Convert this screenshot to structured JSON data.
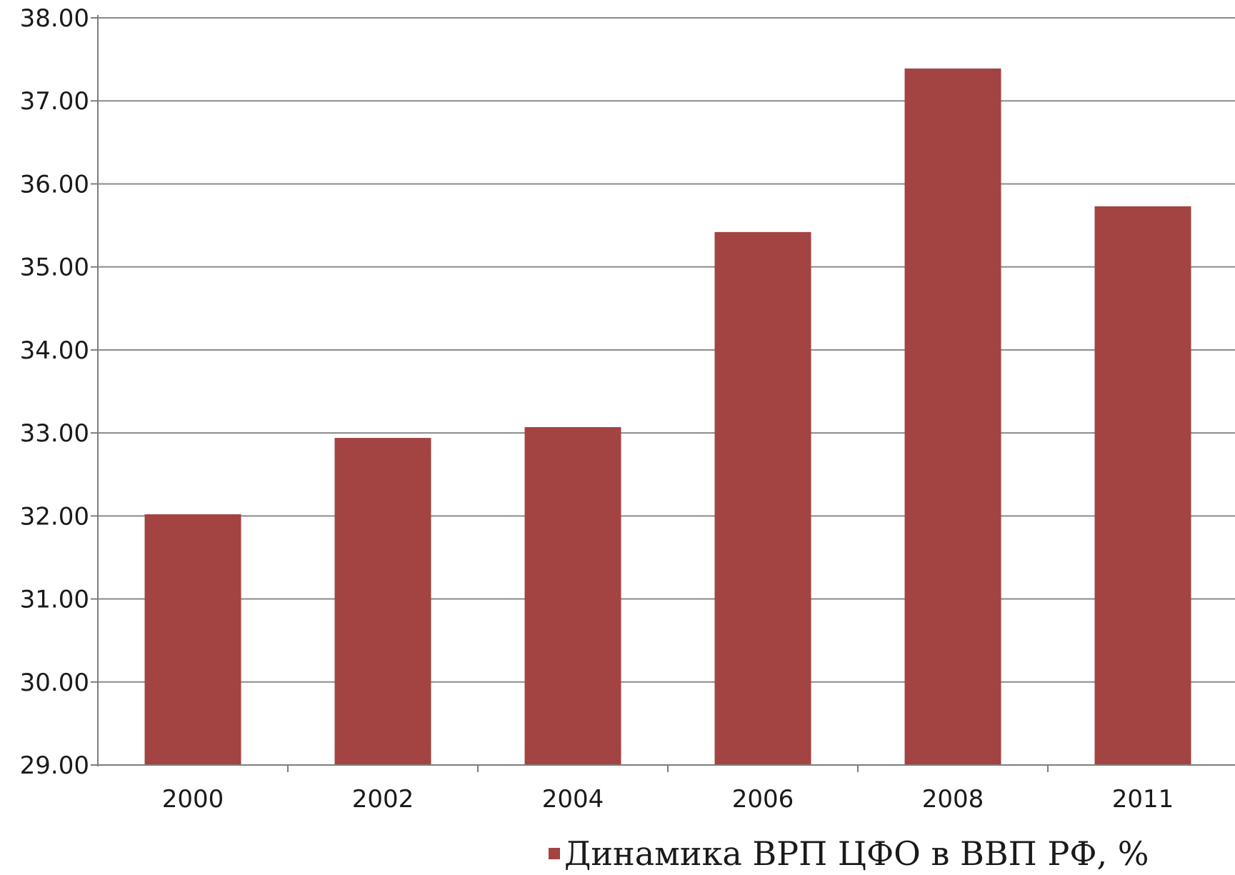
{
  "chart_data": {
    "type": "bar",
    "categories": [
      "2000",
      "2002",
      "2004",
      "2006",
      "2008",
      "2011"
    ],
    "series": [
      {
        "name": "Динамика ВРП ЦФО в ВВП РФ, %",
        "values": [
          32.02,
          32.94,
          33.07,
          35.42,
          37.39,
          35.73
        ],
        "color": "#a34342"
      }
    ],
    "y_ticks": [
      "29.00",
      "30.00",
      "31.00",
      "32.00",
      "33.00",
      "34.00",
      "35.00",
      "36.00",
      "37.00",
      "38.00"
    ],
    "ylim": [
      29,
      38
    ],
    "grid": true,
    "legend_position": "bottom",
    "title": "",
    "xlabel": "",
    "ylabel": ""
  }
}
